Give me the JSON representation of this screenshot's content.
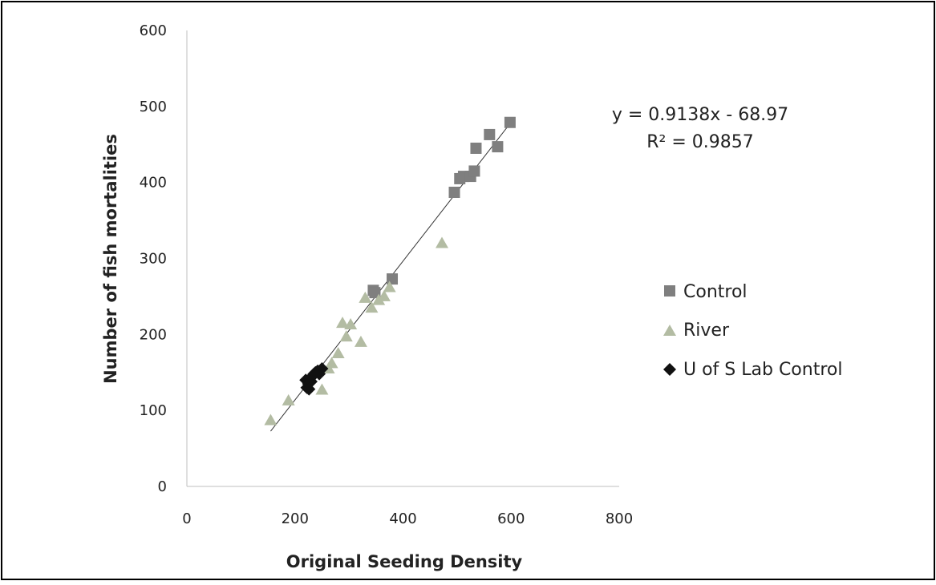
{
  "chart_data": {
    "type": "scatter",
    "title": "",
    "xlabel": "Original Seeding Density",
    "ylabel": "Number of fish mortalities",
    "xlim": [
      0,
      800
    ],
    "ylim": [
      0,
      600
    ],
    "x_ticks": [
      "0",
      "200",
      "400",
      "600",
      "800"
    ],
    "y_ticks": [
      "0",
      "100",
      "200",
      "300",
      "400",
      "500",
      "600"
    ],
    "grid": false,
    "legend_position": "right",
    "colors": {
      "control": "#7f7f7f",
      "river": "#b3bca3",
      "lab_control": "#111111",
      "trendline": "#333333"
    },
    "series": [
      {
        "name": "Control",
        "marker": "square",
        "points": [
          [
            345,
            258
          ],
          [
            348,
            255
          ],
          [
            380,
            273
          ],
          [
            495,
            387
          ],
          [
            505,
            405
          ],
          [
            512,
            408
          ],
          [
            525,
            408
          ],
          [
            532,
            415
          ],
          [
            535,
            445
          ],
          [
            560,
            463
          ],
          [
            575,
            447
          ],
          [
            598,
            479
          ]
        ]
      },
      {
        "name": "River",
        "marker": "triangle",
        "points": [
          [
            155,
            87
          ],
          [
            188,
            113
          ],
          [
            250,
            127
          ],
          [
            262,
            155
          ],
          [
            268,
            162
          ],
          [
            280,
            175
          ],
          [
            288,
            215
          ],
          [
            295,
            197
          ],
          [
            303,
            213
          ],
          [
            322,
            190
          ],
          [
            330,
            248
          ],
          [
            342,
            235
          ],
          [
            355,
            245
          ],
          [
            365,
            250
          ],
          [
            375,
            262
          ],
          [
            472,
            320
          ]
        ]
      },
      {
        "name": "U of S Lab Control",
        "marker": "diamond",
        "points": [
          [
            220,
            140
          ],
          [
            222,
            130
          ],
          [
            225,
            135
          ],
          [
            228,
            142
          ],
          [
            232,
            145
          ],
          [
            235,
            148
          ],
          [
            238,
            150
          ],
          [
            242,
            152
          ],
          [
            245,
            148
          ],
          [
            250,
            155
          ],
          [
            230,
            138
          ],
          [
            226,
            128
          ]
        ]
      }
    ],
    "trendline": {
      "slope": 0.9138,
      "intercept": -68.97,
      "x_range": [
        155,
        600
      ],
      "equation": "y = 0.9138x - 68.97",
      "r_squared": "R² = 0.9857"
    }
  }
}
